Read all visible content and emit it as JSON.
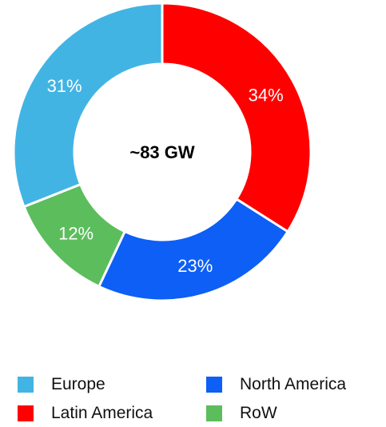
{
  "chart_data": {
    "type": "pie",
    "donut": true,
    "center_label": "~83 GW",
    "slices": [
      {
        "name": "Latin America",
        "value": 34,
        "label": "34%",
        "color": "#ff0000"
      },
      {
        "name": "North America",
        "value": 23,
        "label": "23%",
        "color": "#0d5ff5"
      },
      {
        "name": "RoW",
        "value": 12,
        "label": "12%",
        "color": "#5cbd5c"
      },
      {
        "name": "Europe",
        "value": 31,
        "label": "31%",
        "color": "#42b4e4"
      }
    ],
    "legend": {
      "placement": "bottom",
      "entries": [
        {
          "name": "Europe",
          "color": "#42b4e4"
        },
        {
          "name": "North America",
          "color": "#0d5ff5"
        },
        {
          "name": "Latin America",
          "color": "#ff0000"
        },
        {
          "name": "RoW",
          "color": "#5cbd5c"
        }
      ]
    }
  }
}
